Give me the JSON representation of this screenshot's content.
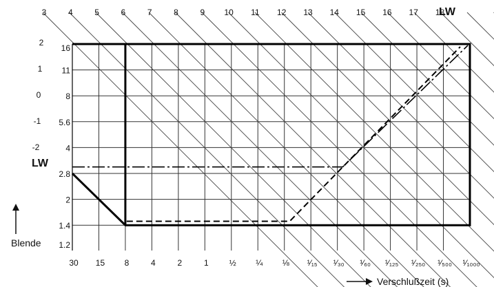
{
  "chart_data": {
    "type": "diagram",
    "title": "",
    "lw_label": "LW",
    "lw_top_ticks": [
      "3",
      "4",
      "5",
      "6",
      "7",
      "8",
      "9",
      "10",
      "11",
      "12",
      "13",
      "14",
      "15",
      "16",
      "17",
      "18"
    ],
    "lw_left_ticks": [
      "2",
      "1",
      "0",
      "-1",
      "-2"
    ],
    "aperture_axis_label": "Blende",
    "aperture_ticks": [
      "16",
      "11",
      "8",
      "5.6",
      "4",
      "2.8",
      "2",
      "1.4",
      "1.2"
    ],
    "shutter_axis_label": "Verschlußzeit (s)",
    "shutter_ticks": [
      "30",
      "15",
      "8",
      "4",
      "2",
      "1",
      "½",
      "¼",
      "⅛",
      "¹⁄₁₅",
      "¹⁄₃₀",
      "¹⁄₆₀",
      "¹⁄₁₂₅",
      "¹⁄₂₅₀",
      "¹⁄₅₀₀",
      "¹⁄₁₀₀₀"
    ],
    "curves": [
      {
        "style": "solid",
        "points": [
          [
            "30",
            "2.8"
          ],
          [
            "8",
            "1.4"
          ],
          [
            "1/1000",
            "1.4"
          ],
          [
            "1/1000",
            "16"
          ],
          [
            "8",
            "16"
          ],
          [
            "8",
            "1.4"
          ]
        ]
      },
      {
        "style": "dash-dot",
        "points": [
          [
            "30",
            "2.8"
          ],
          [
            "1/30",
            "2.8"
          ],
          [
            "1/1000",
            "16"
          ]
        ]
      },
      {
        "style": "dashed",
        "points": [
          [
            "8",
            "1.4"
          ],
          [
            "1/8",
            "1.4"
          ],
          [
            "1/1000",
            "16"
          ]
        ]
      }
    ]
  }
}
